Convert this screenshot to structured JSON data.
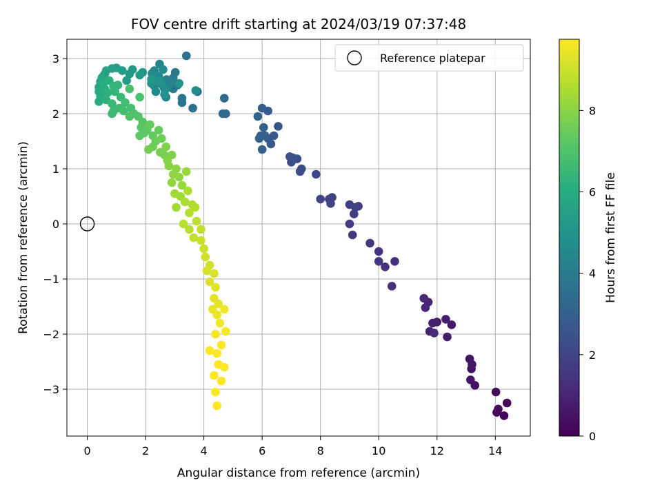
{
  "chart_data": {
    "type": "scatter",
    "title": "FOV centre drift starting at 2024/03/19 07:37:48",
    "xlabel": "Angular distance from reference (arcmin)",
    "ylabel": "Rotation from reference (arcmin)",
    "xlim": [
      -0.7,
      15.2
    ],
    "ylim": [
      -3.85,
      3.35
    ],
    "xticks": [
      0,
      2,
      4,
      6,
      8,
      10,
      12,
      14
    ],
    "xtick_labels": [
      "0",
      "2",
      "4",
      "6",
      "8",
      "10",
      "12",
      "14"
    ],
    "yticks": [
      3,
      2,
      1,
      0,
      -1,
      -2,
      -3
    ],
    "ytick_labels": [
      "3",
      "2",
      "1",
      "0",
      "−1",
      "−2",
      "−3"
    ],
    "grid": true,
    "colormap": "viridis",
    "colorbar": {
      "label": "Hours from first FF file",
      "range": [
        0,
        9.75
      ],
      "ticks": [
        0,
        2,
        4,
        6,
        8
      ],
      "tick_labels": [
        "0",
        "2",
        "4",
        "6",
        "8"
      ]
    },
    "legend": {
      "position": "top-right",
      "entries": [
        {
          "label": "Reference platepar",
          "marker": "open-circle"
        }
      ]
    },
    "reference_point": {
      "x": 0,
      "y": 0
    },
    "colors": {
      "marker_edge": "#000000",
      "grid": "#b0b0b0"
    },
    "points": [
      [
        14.4,
        -3.25,
        0.1
      ],
      [
        14.3,
        -3.48,
        0.15
      ],
      [
        14.05,
        -3.42,
        0.2
      ],
      [
        14.02,
        -3.05,
        0.25
      ],
      [
        14.1,
        -3.36,
        0.3
      ],
      [
        13.3,
        -2.93,
        0.4
      ],
      [
        13.18,
        -2.63,
        0.45
      ],
      [
        13.12,
        -2.45,
        0.5
      ],
      [
        13.15,
        -2.83,
        0.55
      ],
      [
        13.2,
        -2.55,
        0.6
      ],
      [
        12.5,
        -1.83,
        0.7
      ],
      [
        12.35,
        -2.05,
        0.75
      ],
      [
        12.3,
        -1.73,
        0.8
      ],
      [
        12.0,
        -1.78,
        0.85
      ],
      [
        11.85,
        -1.8,
        0.9
      ],
      [
        11.75,
        -1.95,
        0.95
      ],
      [
        11.7,
        -1.42,
        1.0
      ],
      [
        11.6,
        -1.52,
        1.05
      ],
      [
        11.55,
        -1.35,
        1.1
      ],
      [
        11.9,
        -1.98,
        1.15
      ],
      [
        10.55,
        -0.68,
        1.3
      ],
      [
        10.45,
        -1.13,
        1.35
      ],
      [
        10.22,
        -0.78,
        1.4
      ],
      [
        10.0,
        -0.5,
        1.45
      ],
      [
        10.0,
        -0.68,
        1.5
      ],
      [
        9.7,
        -0.35,
        1.55
      ],
      [
        9.1,
        -0.2,
        1.6
      ],
      [
        9.0,
        0.0,
        1.65
      ],
      [
        9.15,
        0.18,
        1.7
      ],
      [
        9.3,
        0.32,
        1.75
      ],
      [
        9.0,
        0.35,
        1.8
      ],
      [
        9.2,
        0.3,
        1.85
      ],
      [
        8.4,
        0.48,
        1.9
      ],
      [
        8.3,
        0.45,
        1.95
      ],
      [
        8.35,
        0.37,
        2.0
      ],
      [
        8.0,
        0.45,
        2.05
      ],
      [
        7.85,
        0.9,
        2.1
      ],
      [
        7.35,
        1.0,
        2.2
      ],
      [
        7.3,
        0.95,
        2.25
      ],
      [
        7.2,
        1.18,
        2.3
      ],
      [
        7.0,
        1.12,
        2.35
      ],
      [
        6.95,
        1.22,
        2.4
      ],
      [
        7.05,
        1.2,
        2.45
      ],
      [
        6.55,
        1.77,
        2.6
      ],
      [
        6.4,
        1.6,
        2.65
      ],
      [
        6.3,
        1.45,
        2.7
      ],
      [
        6.2,
        1.55,
        2.75
      ],
      [
        6.2,
        2.05,
        2.8
      ],
      [
        6.0,
        2.1,
        2.85
      ],
      [
        5.95,
        1.6,
        2.9
      ],
      [
        6.05,
        1.75,
        2.95
      ],
      [
        6.1,
        1.6,
        3.0
      ],
      [
        5.9,
        1.55,
        3.05
      ],
      [
        6.0,
        1.35,
        3.1
      ],
      [
        5.85,
        1.95,
        3.15
      ],
      [
        4.7,
        2.28,
        3.3
      ],
      [
        4.75,
        2.0,
        3.35
      ],
      [
        4.65,
        2.0,
        3.4
      ],
      [
        3.78,
        2.4,
        3.5
      ],
      [
        3.62,
        2.1,
        3.55
      ],
      [
        3.4,
        3.05,
        3.6
      ],
      [
        3.25,
        2.28,
        3.7
      ],
      [
        3.25,
        2.2,
        3.75
      ],
      [
        3.1,
        2.52,
        3.8
      ],
      [
        3.02,
        2.75,
        3.85
      ],
      [
        2.95,
        2.45,
        3.9
      ],
      [
        2.8,
        2.5,
        3.95
      ],
      [
        2.95,
        2.65,
        4.0
      ],
      [
        2.65,
        2.45,
        4.05
      ],
      [
        2.7,
        2.3,
        4.1
      ],
      [
        2.6,
        2.5,
        4.15
      ],
      [
        2.5,
        2.55,
        4.2
      ],
      [
        2.48,
        2.9,
        4.25
      ],
      [
        2.72,
        2.62,
        4.3
      ],
      [
        2.85,
        2.55,
        4.35
      ],
      [
        2.35,
        2.68,
        4.4
      ],
      [
        2.3,
        2.78,
        4.45
      ],
      [
        2.45,
        2.68,
        4.5
      ],
      [
        2.3,
        2.5,
        4.55
      ],
      [
        2.35,
        2.4,
        4.6
      ],
      [
        2.22,
        2.73,
        4.65
      ],
      [
        2.6,
        2.8,
        4.7
      ],
      [
        3.72,
        2.42,
        4.75
      ],
      [
        2.2,
        2.55,
        4.8
      ],
      [
        2.7,
        2.45,
        4.85
      ],
      [
        2.65,
        2.35,
        4.9
      ],
      [
        2.55,
        2.55,
        4.95
      ],
      [
        2.45,
        2.6,
        5.0
      ],
      [
        3.15,
        2.55,
        5.05
      ],
      [
        2.2,
        2.62,
        5.1
      ],
      [
        1.9,
        2.75,
        5.15
      ],
      [
        1.8,
        2.7,
        5.2
      ],
      [
        1.55,
        2.8,
        5.25
      ],
      [
        1.45,
        2.72,
        5.3
      ],
      [
        1.35,
        2.6,
        5.35
      ],
      [
        1.2,
        2.78,
        5.4
      ],
      [
        1.0,
        2.83,
        5.45
      ],
      [
        0.85,
        2.82,
        5.5
      ],
      [
        0.65,
        2.78,
        5.55
      ],
      [
        0.6,
        2.72,
        5.6
      ],
      [
        0.55,
        2.68,
        5.65
      ],
      [
        0.5,
        2.65,
        5.7
      ],
      [
        0.45,
        2.58,
        5.75
      ],
      [
        0.4,
        2.48,
        5.8
      ],
      [
        0.4,
        2.4,
        5.85
      ],
      [
        0.45,
        2.32,
        5.9
      ],
      [
        0.4,
        2.22,
        5.95
      ],
      [
        0.5,
        2.3,
        6.0
      ],
      [
        0.6,
        2.45,
        6.05
      ],
      [
        0.55,
        2.55,
        6.1
      ],
      [
        0.75,
        2.6,
        6.15
      ],
      [
        0.7,
        2.38,
        6.2
      ],
      [
        0.65,
        2.25,
        6.25
      ],
      [
        0.9,
        2.5,
        6.3
      ],
      [
        0.95,
        2.4,
        6.35
      ],
      [
        1.05,
        2.52,
        6.4
      ],
      [
        1.15,
        2.3,
        6.45
      ],
      [
        0.85,
        2.18,
        6.5
      ],
      [
        0.9,
        2.05,
        6.55
      ],
      [
        0.85,
        2.0,
        6.6
      ],
      [
        1.1,
        2.1,
        6.65
      ],
      [
        1.3,
        2.2,
        6.7
      ],
      [
        1.25,
        2.05,
        6.75
      ],
      [
        1.5,
        2.1,
        6.8
      ],
      [
        1.45,
        2.45,
        6.85
      ],
      [
        1.8,
        2.3,
        6.9
      ],
      [
        1.6,
        2.0,
        6.95
      ],
      [
        1.45,
        1.95,
        7.0
      ],
      [
        1.75,
        1.95,
        7.05
      ],
      [
        1.9,
        1.85,
        7.1
      ],
      [
        1.85,
        1.75,
        7.15
      ],
      [
        1.95,
        1.65,
        7.2
      ],
      [
        1.8,
        1.6,
        7.25
      ],
      [
        2.05,
        1.7,
        7.3
      ],
      [
        2.25,
        1.6,
        7.35
      ],
      [
        2.15,
        1.8,
        7.4
      ],
      [
        2.45,
        1.7,
        7.45
      ],
      [
        2.35,
        1.5,
        7.5
      ],
      [
        2.55,
        1.55,
        7.55
      ],
      [
        2.25,
        1.4,
        7.6
      ],
      [
        2.1,
        1.35,
        7.65
      ],
      [
        2.5,
        1.3,
        7.7
      ],
      [
        2.65,
        1.25,
        7.75
      ],
      [
        2.7,
        1.4,
        7.8
      ],
      [
        2.9,
        1.25,
        7.85
      ],
      [
        2.75,
        1.15,
        7.9
      ],
      [
        2.8,
        1.05,
        7.95
      ],
      [
        3.05,
        1.0,
        8.0
      ],
      [
        2.95,
        0.9,
        8.05
      ],
      [
        3.15,
        0.85,
        8.1
      ],
      [
        2.9,
        0.75,
        8.15
      ],
      [
        3.25,
        0.7,
        8.2
      ],
      [
        3.4,
        0.95,
        8.25
      ],
      [
        3.0,
        0.55,
        8.3
      ],
      [
        3.2,
        0.5,
        8.35
      ],
      [
        3.05,
        0.3,
        8.4
      ],
      [
        3.35,
        0.4,
        8.45
      ],
      [
        3.45,
        0.6,
        8.5
      ],
      [
        3.6,
        0.35,
        8.55
      ],
      [
        3.7,
        0.3,
        8.6
      ],
      [
        3.5,
        0.2,
        8.65
      ],
      [
        3.3,
        0.0,
        8.7
      ],
      [
        3.5,
        -0.1,
        8.75
      ],
      [
        3.75,
        0.05,
        8.8
      ],
      [
        3.9,
        -0.1,
        8.85
      ],
      [
        3.65,
        -0.25,
        8.9
      ],
      [
        3.9,
        -0.3,
        8.95
      ],
      [
        4.0,
        -0.45,
        9.0
      ],
      [
        4.05,
        -0.6,
        9.05
      ],
      [
        4.2,
        -0.75,
        9.1
      ],
      [
        4.1,
        -0.85,
        9.15
      ],
      [
        4.35,
        -0.9,
        9.2
      ],
      [
        4.2,
        -1.05,
        9.25
      ],
      [
        4.4,
        -1.15,
        9.3
      ],
      [
        4.35,
        -1.35,
        9.35
      ],
      [
        4.5,
        -1.45,
        9.4
      ],
      [
        4.3,
        -1.55,
        9.45
      ],
      [
        4.45,
        -1.65,
        9.5
      ],
      [
        4.7,
        -1.55,
        9.55
      ],
      [
        4.55,
        -1.8,
        9.6
      ],
      [
        4.4,
        -2.0,
        9.65
      ],
      [
        4.6,
        -2.2,
        9.7
      ],
      [
        4.45,
        -2.35,
        9.72
      ],
      [
        4.2,
        -2.3,
        9.73
      ],
      [
        4.75,
        -1.95,
        9.74
      ],
      [
        4.5,
        -2.55,
        9.75
      ],
      [
        4.7,
        -2.6,
        9.75
      ],
      [
        4.35,
        -2.75,
        9.75
      ],
      [
        4.6,
        -2.85,
        9.75
      ],
      [
        4.4,
        -3.05,
        9.75
      ],
      [
        4.45,
        -3.3,
        9.75
      ]
    ]
  }
}
